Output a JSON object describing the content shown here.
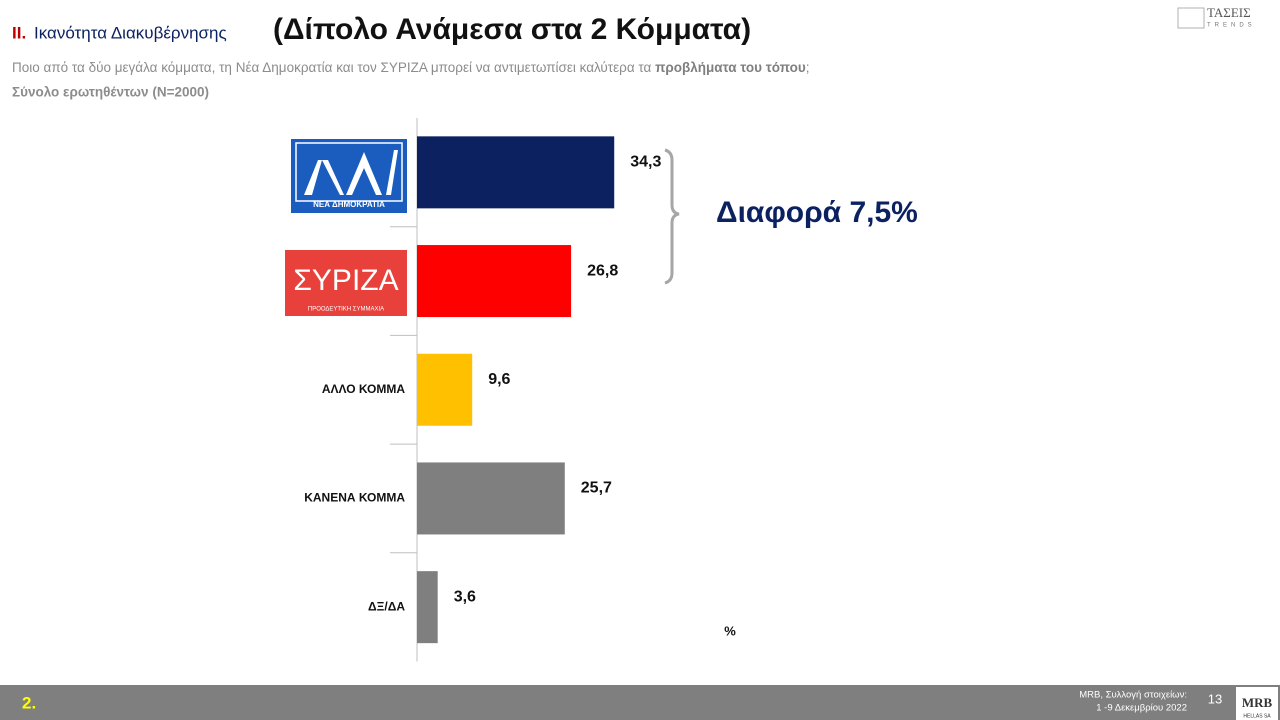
{
  "header": {
    "number": "ΙΙ.",
    "title": "Ικανότητα Διακυβέρνησης",
    "title_big": "(Δίπολο Ανάμεσα στα 2 Κόμματα)",
    "question": "Ποιο από τα δύο μεγάλα κόμματα, τη Νέα Δημοκρατία και τον ΣΥΡΙΖΑ μπορεί να αντιμετωπίσει καλύτερα  τα ",
    "question_bold": "προβλήματα του τόπου",
    "question_end": ";",
    "base": "Σύνολο ερωτηθέντων (N=2000)",
    "brand": "ΤΑΣΕΙΣ",
    "brand_sub": "TRENDS"
  },
  "chart_data": {
    "type": "bar",
    "orientation": "horizontal",
    "categories": [
      "ΝΕΑ ΔΗΜΟΚΡΑΤΙΑ",
      "ΣΥΡΙΖΑ",
      "ΑΛΛΟ ΚΟΜΜΑ",
      "ΚΑΝΕΝΑ ΚΟΜΜΑ",
      "ΔΞ/ΔΑ"
    ],
    "values": [
      34.3,
      26.8,
      9.6,
      25.7,
      3.6
    ],
    "value_labels": [
      "34,3",
      "26,8",
      "9,6",
      "25,7",
      "3,6"
    ],
    "colors": [
      "#0c2160",
      "#ff0000",
      "#ffc000",
      "#7f7f7f",
      "#7f7f7f"
    ],
    "logo_tagline": "ΠΡΟΟΔΕΥΤΙΚΗ ΣΥΜΜΑΧΙΑ",
    "annotation": "Διαφορά 7,5%",
    "unit": "%"
  },
  "footer": {
    "page_label": "2.",
    "source_line1": "MRB, Συλλογή στοιχείων:",
    "source_line2": "1 -9 Δεκεμβρίου 2022",
    "page": "13",
    "logo": "MRB",
    "logo_sub": "HELLAS SA"
  }
}
